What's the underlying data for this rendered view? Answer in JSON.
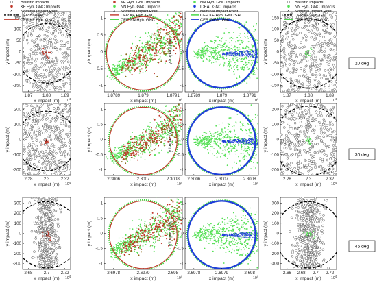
{
  "row_labels": [
    "20 deg",
    "30 deg",
    "45 deg"
  ],
  "colors": {
    "ballistic": "#555555",
    "kf": "#c0392b",
    "kf_dot": "#8b6b1a",
    "nn": "#55e055",
    "ideal": "#1f3fd8",
    "cep_nn": "#3bd63b",
    "cep_ideal": "#1f3fd8",
    "nominal": "#000000"
  },
  "legends": {
    "col1": [
      "Ballistic Impacts",
      "KF Hyb. GNC Impacts",
      "Nominal Impact Point",
      "CEP Ballistic",
      "CEP KF Hyb. GNC"
    ],
    "col2": [
      "KF Hyb. GNC Impacts",
      "NN Hyb. GNC Impacts",
      "Nominal Impact Point",
      "CEP KF Hyb. GNC",
      "CEP NN Hyb. GNC"
    ],
    "col3": [
      "NN Hyb. GNC Impacts",
      "IDEAL GNC Impacts",
      "Nominal Impact Point",
      "CEP KF Hyb. GNC/SAL",
      "CEP IDEAL GNC"
    ],
    "col4": [
      "Ballistic Impacts",
      "NN Hyb. GNC Impacts",
      "Nominal Impact Point",
      "CEP KF Hyb. GNC",
      "CEP NN Hyb. GNC"
    ]
  },
  "chart_data": [
    {
      "type": "scatter",
      "row": 0,
      "col": 0,
      "xlabel": "x impact (m)",
      "ylabel": "y impact (m)",
      "x_exponent": "10",
      "x_exponent_power": "4",
      "xticks": [
        "1.87",
        "1.88",
        "1.89"
      ],
      "yticks": [
        "-150",
        "-100",
        "-50",
        "0",
        "50",
        "100",
        "150"
      ],
      "xlim": [
        1.865,
        1.895
      ],
      "ylim": [
        -175,
        175
      ]
    },
    {
      "type": "scatter",
      "row": 0,
      "col": 1,
      "xlabel": "x impact (m)",
      "ylabel": "y impact (m)",
      "x_exponent": "10",
      "x_exponent_power": "4",
      "xticks": [
        "1.8789",
        "1.879",
        "1.8791"
      ],
      "yticks": [
        "-1",
        "-0.5",
        "0",
        "0.5",
        "1"
      ],
      "xlim": [
        1.87888,
        1.87915
      ],
      "ylim": [
        -1.25,
        1.3
      ]
    },
    {
      "type": "scatter",
      "row": 0,
      "col": 2,
      "xlabel": "x impact (m)",
      "ylabel": "y impact (m)",
      "x_exponent": "10",
      "x_exponent_power": "4",
      "xticks": [
        "1.8789",
        "1.879",
        "1.8791"
      ],
      "yticks": [
        "-1",
        "-0.5",
        "0",
        "0.5",
        "1"
      ],
      "xlim": [
        1.87888,
        1.87915
      ],
      "ylim": [
        -1.25,
        1.3
      ]
    },
    {
      "type": "scatter",
      "row": 0,
      "col": 3,
      "xlabel": "x impact (m)",
      "ylabel": "y impact (m)",
      "x_exponent": "10",
      "x_exponent_power": "4",
      "xticks": [
        "1.87",
        "1.88",
        "1.89"
      ],
      "yticks": [
        "-150",
        "-100",
        "-50",
        "0",
        "50",
        "100",
        "150"
      ],
      "xlim": [
        1.865,
        1.895
      ],
      "ylim": [
        -175,
        175
      ]
    },
    {
      "type": "scatter",
      "row": 1,
      "col": 0,
      "xlabel": "x impact (m)",
      "ylabel": "y impact (m)",
      "x_exponent": "10",
      "x_exponent_power": "4",
      "xticks": [
        "2.28",
        "2.3",
        "2.32"
      ],
      "yticks": [
        "-200",
        "-100",
        "0",
        "100",
        "200"
      ],
      "xlim": [
        2.27,
        2.33
      ],
      "ylim": [
        -250,
        250
      ]
    },
    {
      "type": "scatter",
      "row": 1,
      "col": 1,
      "xlabel": "x impact (m)",
      "ylabel": "y impact (m)",
      "x_exponent": "10",
      "x_exponent_power": "4",
      "xticks": [
        "2.3006",
        "2.3007",
        "2.3008"
      ],
      "yticks": [
        "-1",
        "-0.5",
        "0",
        "0.5",
        "1"
      ],
      "xlim": [
        2.30058,
        2.30085
      ],
      "ylim": [
        -1.25,
        1.3
      ]
    },
    {
      "type": "scatter",
      "row": 1,
      "col": 2,
      "xlabel": "x impact (m)",
      "ylabel": "y impact (m)",
      "x_exponent": "10",
      "x_exponent_power": "4",
      "xticks": [
        "2.3006",
        "2.3007",
        "2.3008"
      ],
      "yticks": [
        "-1",
        "-0.5",
        "0",
        "0.5",
        "1"
      ],
      "xlim": [
        2.30058,
        2.30085
      ],
      "ylim": [
        -1.25,
        1.3
      ]
    },
    {
      "type": "scatter",
      "row": 1,
      "col": 3,
      "xlabel": "x impact (m)",
      "ylabel": "y impact (m)",
      "x_exponent": "10",
      "x_exponent_power": "4",
      "xticks": [
        "2.28",
        "2.3",
        "2.32"
      ],
      "yticks": [
        "-200",
        "-100",
        "0",
        "100",
        "200"
      ],
      "xlim": [
        2.27,
        2.33
      ],
      "ylim": [
        -250,
        250
      ]
    },
    {
      "type": "scatter",
      "row": 2,
      "col": 0,
      "xlabel": "x impact (m)",
      "ylabel": "y impact (m)",
      "x_exponent": "10",
      "x_exponent_power": "4",
      "xticks": [
        "2.68",
        "2.7",
        "2.72"
      ],
      "yticks": [
        "-300",
        "-200",
        "-100",
        "0",
        "100",
        "200",
        "300"
      ],
      "xlim": [
        2.665,
        2.73
      ],
      "ylim": [
        -310,
        310
      ]
    },
    {
      "type": "scatter",
      "row": 2,
      "col": 1,
      "xlabel": "x impact (m)",
      "ylabel": "y impact (m)",
      "x_exponent": "10",
      "x_exponent_power": "4",
      "xticks": [
        "2.6978",
        "2.6979",
        "2.698"
      ],
      "yticks": [
        "-1",
        "-0.5",
        "0",
        "0.5",
        "1"
      ],
      "xlim": [
        2.69775,
        2.69802
      ],
      "ylim": [
        -1.25,
        1.3
      ]
    },
    {
      "type": "scatter",
      "row": 2,
      "col": 2,
      "xlabel": "x impact (m)",
      "ylabel": "y impact (m)",
      "x_exponent": "10",
      "x_exponent_power": "4",
      "xticks": [
        "2.6978",
        "2.6979",
        "2.698"
      ],
      "yticks": [
        "-1",
        "-0.5",
        "0",
        "0.5",
        "1"
      ],
      "xlim": [
        2.69775,
        2.69802
      ],
      "ylim": [
        -1.25,
        1.3
      ]
    },
    {
      "type": "scatter",
      "row": 2,
      "col": 3,
      "xlabel": "x impact (m)",
      "ylabel": "y impact (m)",
      "x_exponent": "10",
      "x_exponent_power": "4",
      "xticks": [
        "2.66",
        "2.68",
        "2.7",
        "2.72"
      ],
      "yticks": [
        "-300",
        "-200",
        "-100",
        "0",
        "100",
        "200",
        "300"
      ],
      "xlim": [
        2.65,
        2.73
      ],
      "ylim": [
        -310,
        310
      ]
    }
  ]
}
